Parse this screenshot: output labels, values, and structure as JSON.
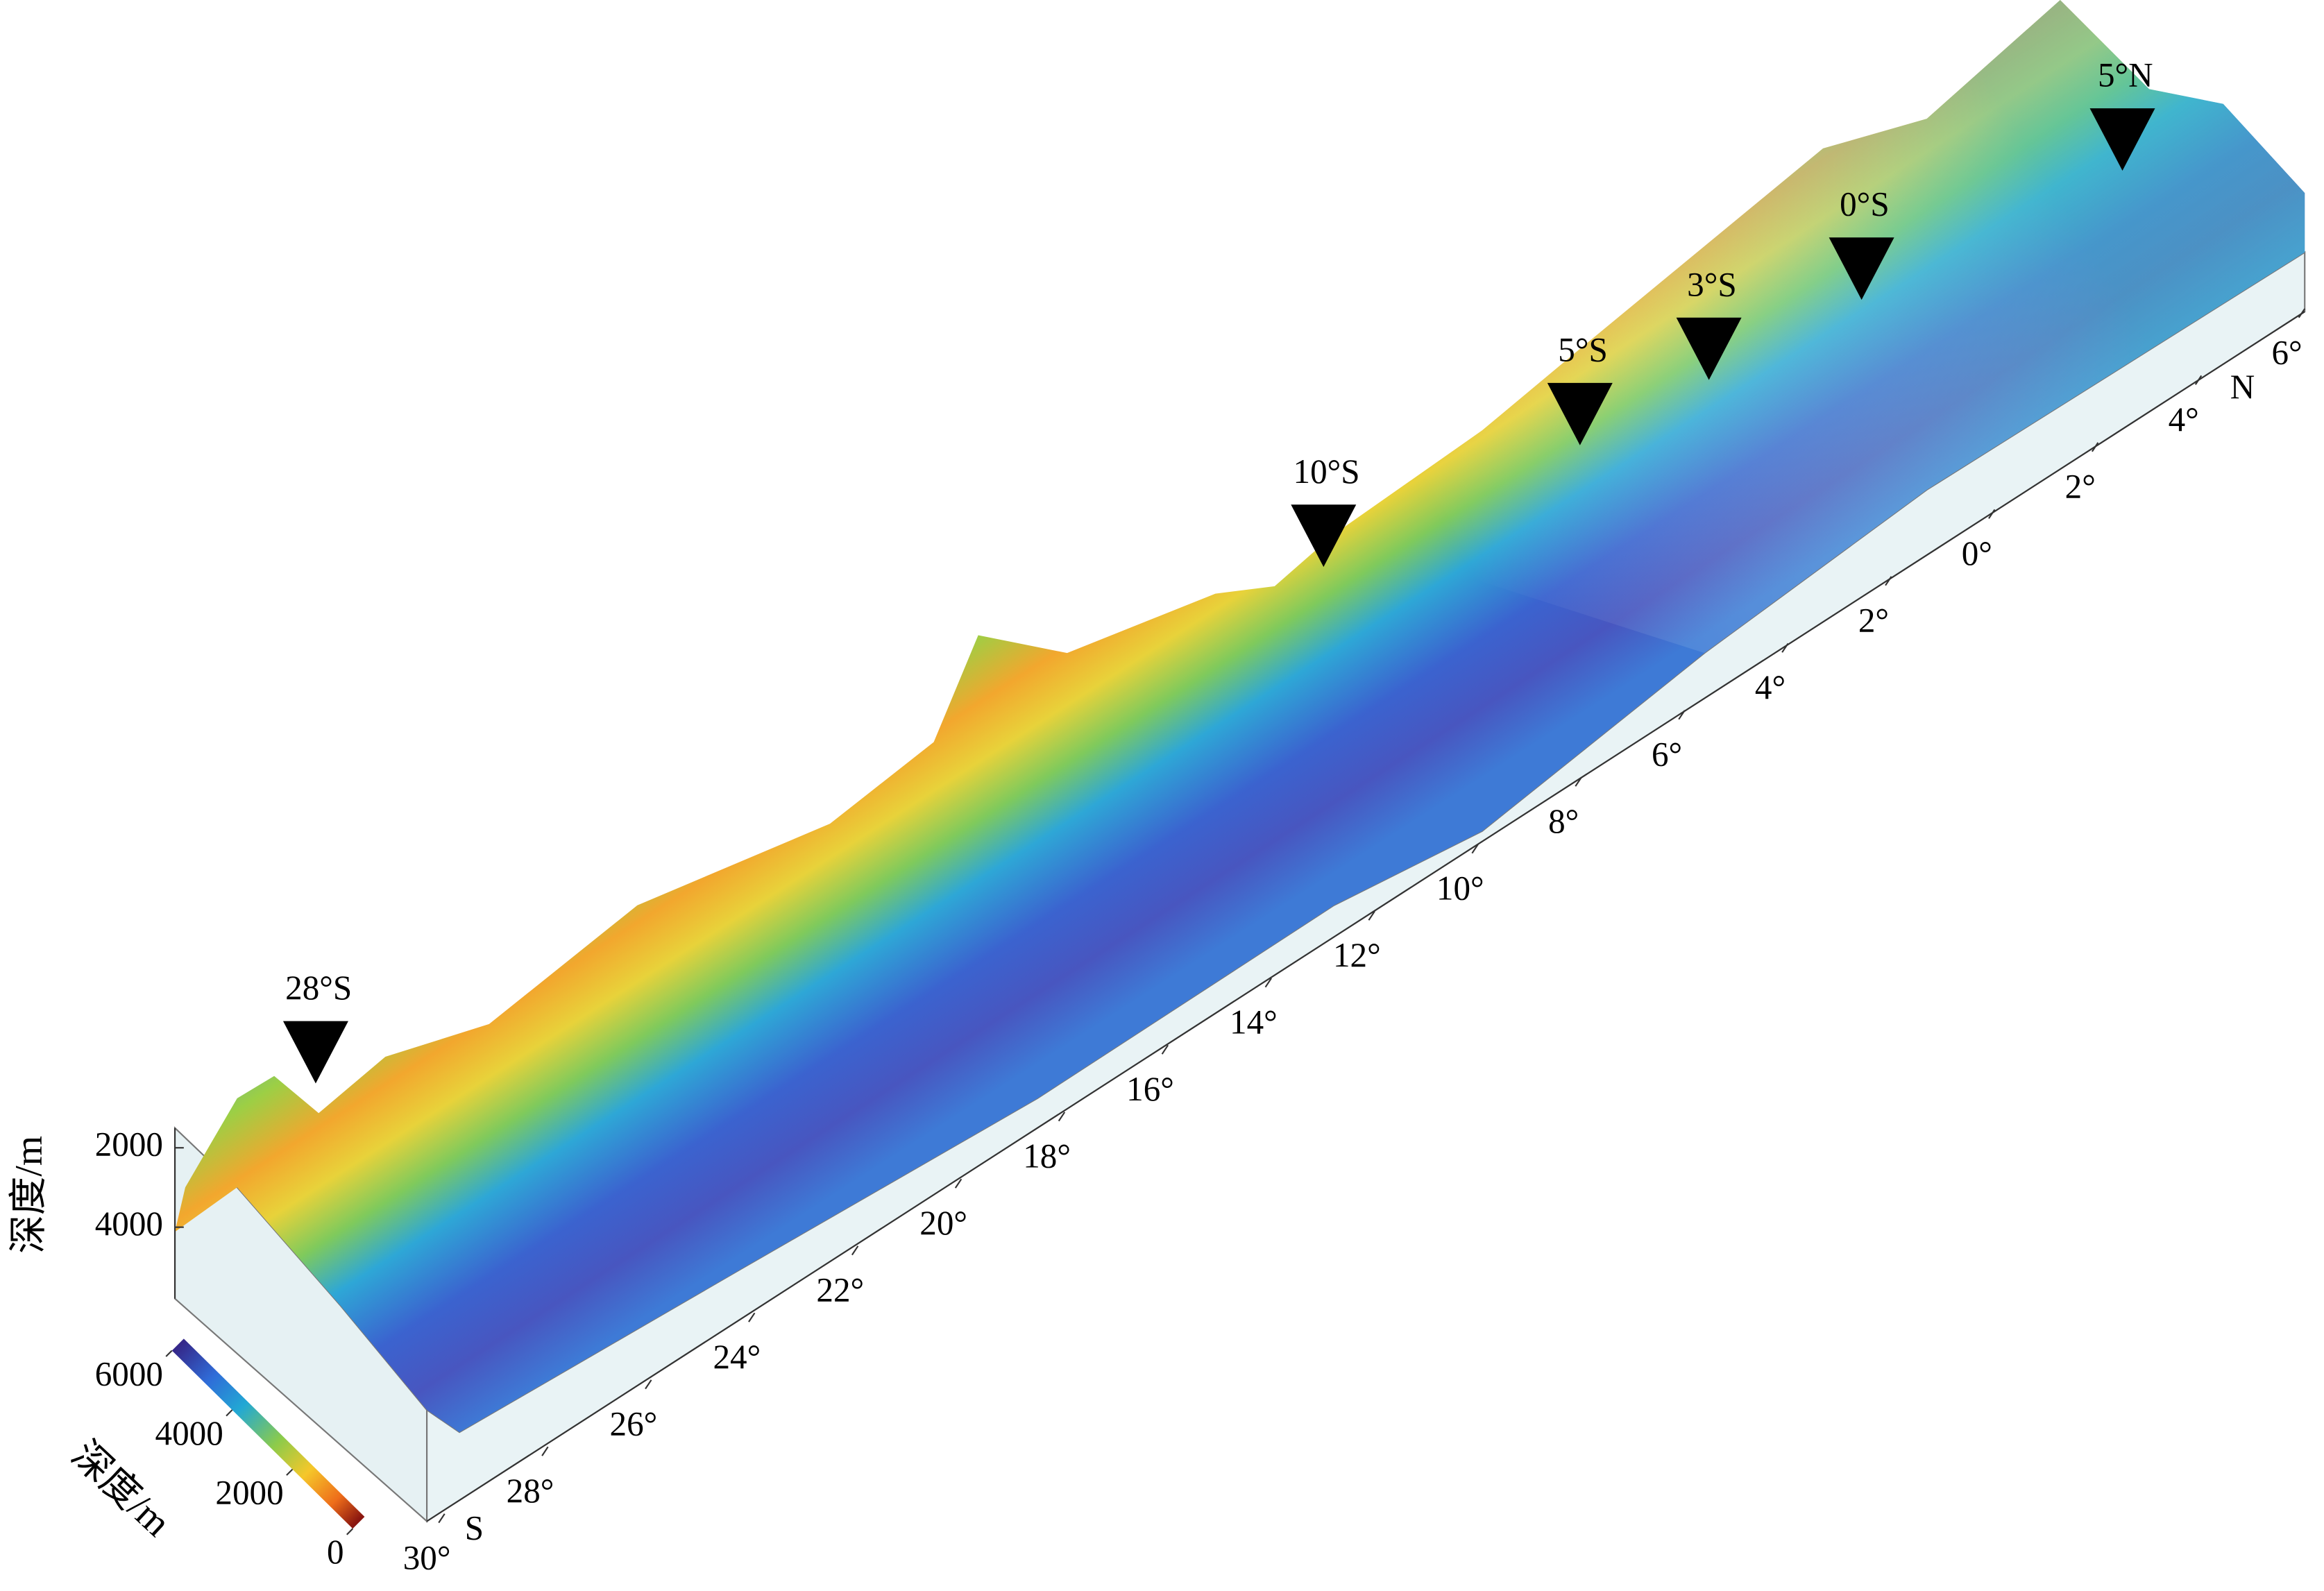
{
  "chart_data": {
    "type": "surface3d",
    "zlabel": "深度/m",
    "zlim": [
      1500,
      5800
    ],
    "zticks": [
      2000,
      4000
    ],
    "xlim": [
      -30,
      6
    ],
    "xticks": [
      {
        "value": -30,
        "label": "30°"
      },
      {
        "value": -28,
        "label": "28°"
      },
      {
        "value": -26,
        "label": "26°"
      },
      {
        "value": -24,
        "label": "24°"
      },
      {
        "value": -22,
        "label": "22°"
      },
      {
        "value": -20,
        "label": "20°"
      },
      {
        "value": -18,
        "label": "18°"
      },
      {
        "value": -16,
        "label": "16°"
      },
      {
        "value": -14,
        "label": "14°"
      },
      {
        "value": -12,
        "label": "12°"
      },
      {
        "value": -10,
        "label": "10°"
      },
      {
        "value": -8,
        "label": "8°"
      },
      {
        "value": -6,
        "label": "6°"
      },
      {
        "value": -4,
        "label": "4°"
      },
      {
        "value": -2,
        "label": "2°"
      },
      {
        "value": 0,
        "label": "0°"
      },
      {
        "value": 2,
        "label": "2°"
      },
      {
        "value": 4,
        "label": "4°"
      },
      {
        "value": 6,
        "label": "6°"
      }
    ],
    "x_end_labels": [
      "S",
      "N"
    ],
    "colorbar": {
      "label": "深度/m",
      "lim": [
        0,
        6000
      ],
      "ticks": [
        0,
        2000,
        4000,
        6000
      ]
    },
    "markers": [
      {
        "value": -28,
        "label": "28°S"
      },
      {
        "value": -10,
        "label": "10°S"
      },
      {
        "value": -5,
        "label": "5°S"
      },
      {
        "value": -3,
        "label": "3°S"
      },
      {
        "value": 0,
        "label": "0°S"
      },
      {
        "value": 5,
        "label": "5°N"
      }
    ]
  }
}
